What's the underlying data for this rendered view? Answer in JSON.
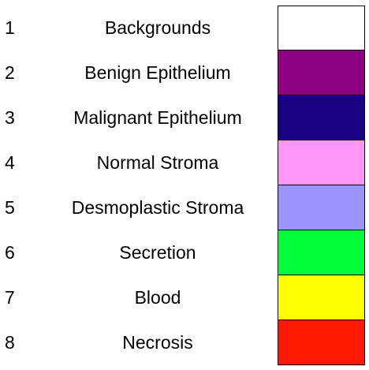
{
  "legend": {
    "items": [
      {
        "number": "1",
        "label": "Backgrounds",
        "color": "#ffffff"
      },
      {
        "number": "2",
        "label": "Benign Epithelium",
        "color": "#8b0081"
      },
      {
        "number": "3",
        "label": "Malignant Epithelium",
        "color": "#1a0080"
      },
      {
        "number": "4",
        "label": "Normal Stroma",
        "color": "#ff97fa"
      },
      {
        "number": "5",
        "label": "Desmoplastic Stroma",
        "color": "#9a95ff"
      },
      {
        "number": "6",
        "label": "Secretion",
        "color": "#00ff37"
      },
      {
        "number": "7",
        "label": "Blood",
        "color": "#ffff00"
      },
      {
        "number": "8",
        "label": "Necrosis",
        "color": "#ff1a00"
      }
    ]
  }
}
